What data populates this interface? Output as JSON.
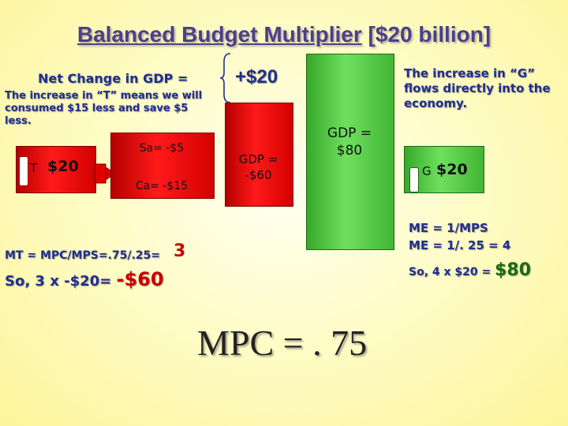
{
  "title": {
    "main": "Balanced Budget Multiplier",
    "bracket": " [$20 billion]"
  },
  "net_change": {
    "label": "Net Change in GDP =",
    "value": "+$20"
  },
  "tax_note": "The increase in “T” means we will consumed $15 less and save $5 less.",
  "gov_note": "The increase in “G” flows directly into the economy.",
  "tax_block": {
    "letter": "T",
    "value": "$20",
    "sa": "Sa= -$5",
    "ca": "Ca= -$15"
  },
  "gdp_boxes": {
    "negative": "GDP =\n-$60",
    "positive": "GDP =\n$80"
  },
  "gov_block": {
    "letter": "G",
    "value": "$20"
  },
  "mt_formula": {
    "text": "MT = MPC/MPS=.75/.25=",
    "result": "3"
  },
  "mt_result": {
    "text": "So, 3 x -$20=",
    "result": "-$60"
  },
  "me_formula": {
    "line1": "ME = 1/MPS",
    "line2": "ME = 1/. 25 = 4"
  },
  "me_result": {
    "text": "So, 4 x $20 =",
    "result": "$80"
  },
  "mpc": "MPC = . 75",
  "colors": {
    "red": "#e00000",
    "green": "#5ccf4c",
    "title": "#4a3f8c",
    "blue_text": "#1f2f8f"
  }
}
